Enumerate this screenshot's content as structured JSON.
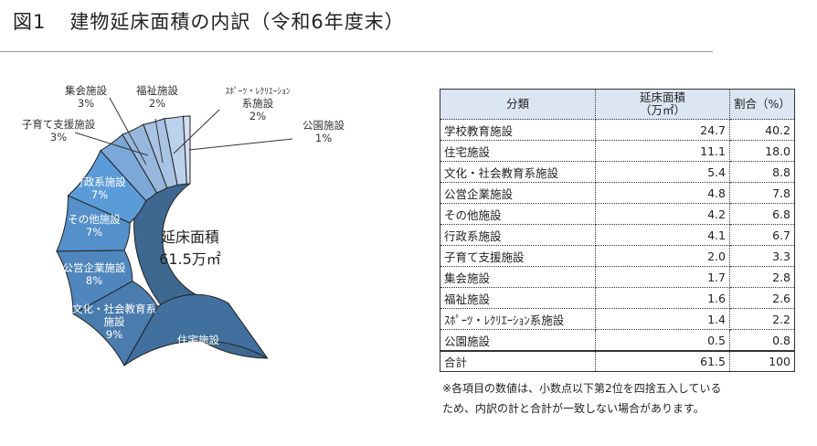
{
  "title": {
    "fig": "図1",
    "text": "建物延床面積の内訳（令和6年度末）"
  },
  "chart_data": {
    "type": "pie",
    "subtype": "donut",
    "center_label": [
      "延床面積",
      "61.5万㎡"
    ],
    "unit": "万㎡",
    "categories": [
      "学校教育施設",
      "住宅施設",
      "文化・社会教育系施設",
      "公営企業施設",
      "その他施設",
      "行政系施設",
      "子育て支援施設",
      "集会施設",
      "福祉施設",
      "ｽﾎﾟｰﾂ・ﾚｸﾘｴｰｼｮﾝ系施設",
      "公園施設"
    ],
    "values": [
      24.7,
      11.1,
      5.4,
      4.8,
      4.2,
      4.1,
      2.0,
      1.7,
      1.6,
      1.4,
      0.5
    ],
    "labels": [
      [
        "学校教育施設",
        "40%"
      ],
      [
        "住宅施設",
        "18%"
      ],
      [
        "文化・社会教育系",
        "施設",
        "9%"
      ],
      [
        "公営企業施設",
        "8%"
      ],
      [
        "その他施設",
        "7%"
      ],
      [
        "行政系施設",
        "7%"
      ],
      [
        "子育て支援施設",
        "3%"
      ],
      [
        "集会施設",
        "3%"
      ],
      [
        "福祉施設",
        "2%"
      ],
      [
        "ｽﾎﾟｰﾂ・ﾚｸﾘｴｰｼｮﾝ",
        "系施設",
        "2%"
      ],
      [
        "公園施設",
        "1%"
      ]
    ],
    "colors": [
      "#3e6890",
      "#41709f",
      "#4a7cae",
      "#4f86bd",
      "#5590ca",
      "#5b9cd8",
      "#7ba8d9",
      "#98b7dd",
      "#a8c3e4",
      "#bcd1ec",
      "#d3e0f1"
    ]
  },
  "table": {
    "headers": [
      "分類",
      "延床面積\n（万㎡）",
      "割合（%）"
    ],
    "rows": [
      [
        "学校教育施設",
        "24.7",
        "40.2"
      ],
      [
        "住宅施設",
        "11.1",
        "18.0"
      ],
      [
        "文化・社会教育系施設",
        "5.4",
        "8.8"
      ],
      [
        "公営企業施設",
        "4.8",
        "7.8"
      ],
      [
        "その他施設",
        "4.2",
        "6.8"
      ],
      [
        "行政系施設",
        "4.1",
        "6.7"
      ],
      [
        "子育て支援施設",
        "2.0",
        "3.3"
      ],
      [
        "集会施設",
        "1.7",
        "2.8"
      ],
      [
        "福祉施設",
        "1.6",
        "2.6"
      ],
      [
        "ｽﾎﾟｰﾂ・ﾚｸﾘｴｰｼｮﾝ系施設",
        "1.4",
        "2.2"
      ],
      [
        "公園施設",
        "0.5",
        "0.8"
      ]
    ],
    "total": [
      "合計",
      "61.5",
      "100"
    ]
  },
  "note": [
    "※各項目の数値は、小数点以下第2位を四捨五入している",
    "ため、内訳の計と合計が一致しない場合があります。"
  ]
}
